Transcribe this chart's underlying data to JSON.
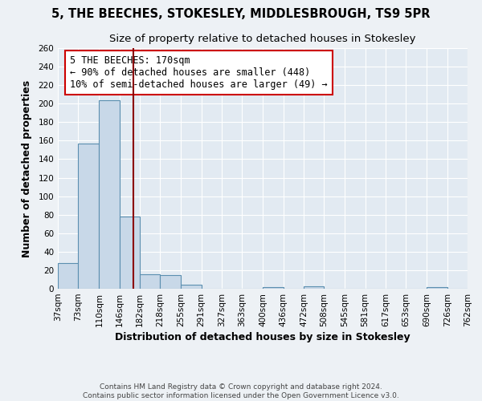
{
  "title": "5, THE BEECHES, STOKESLEY, MIDDLESBROUGH, TS9 5PR",
  "subtitle": "Size of property relative to detached houses in Stokesley",
  "xlabel": "Distribution of detached houses by size in Stokesley",
  "ylabel": "Number of detached properties",
  "bin_edges": [
    37,
    73,
    110,
    146,
    182,
    218,
    255,
    291,
    327,
    363,
    400,
    436,
    472,
    508,
    545,
    581,
    617,
    653,
    690,
    726,
    762
  ],
  "bar_heights": [
    28,
    157,
    204,
    78,
    16,
    15,
    4,
    0,
    0,
    0,
    2,
    0,
    3,
    0,
    0,
    0,
    0,
    0,
    2,
    0
  ],
  "bar_color": "#c8d8e8",
  "bar_edge_color": "#5b8fb0",
  "property_value": 170,
  "vline_color": "#8b0000",
  "annotation_text": "5 THE BEECHES: 170sqm\n← 90% of detached houses are smaller (448)\n10% of semi-detached houses are larger (49) →",
  "annotation_box_color": "#ffffff",
  "annotation_box_edge_color": "#cc0000",
  "ylim": [
    0,
    260
  ],
  "yticks": [
    0,
    20,
    40,
    60,
    80,
    100,
    120,
    140,
    160,
    180,
    200,
    220,
    240,
    260
  ],
  "footer": "Contains HM Land Registry data © Crown copyright and database right 2024.\nContains public sector information licensed under the Open Government Licence v3.0.",
  "bg_color": "#edf1f5",
  "plot_bg_color": "#e2eaf2",
  "grid_color": "#ffffff",
  "title_fontsize": 10.5,
  "subtitle_fontsize": 9.5,
  "tick_label_fontsize": 7.5,
  "axis_label_fontsize": 9,
  "annotation_fontsize": 8.5,
  "footer_fontsize": 6.5
}
